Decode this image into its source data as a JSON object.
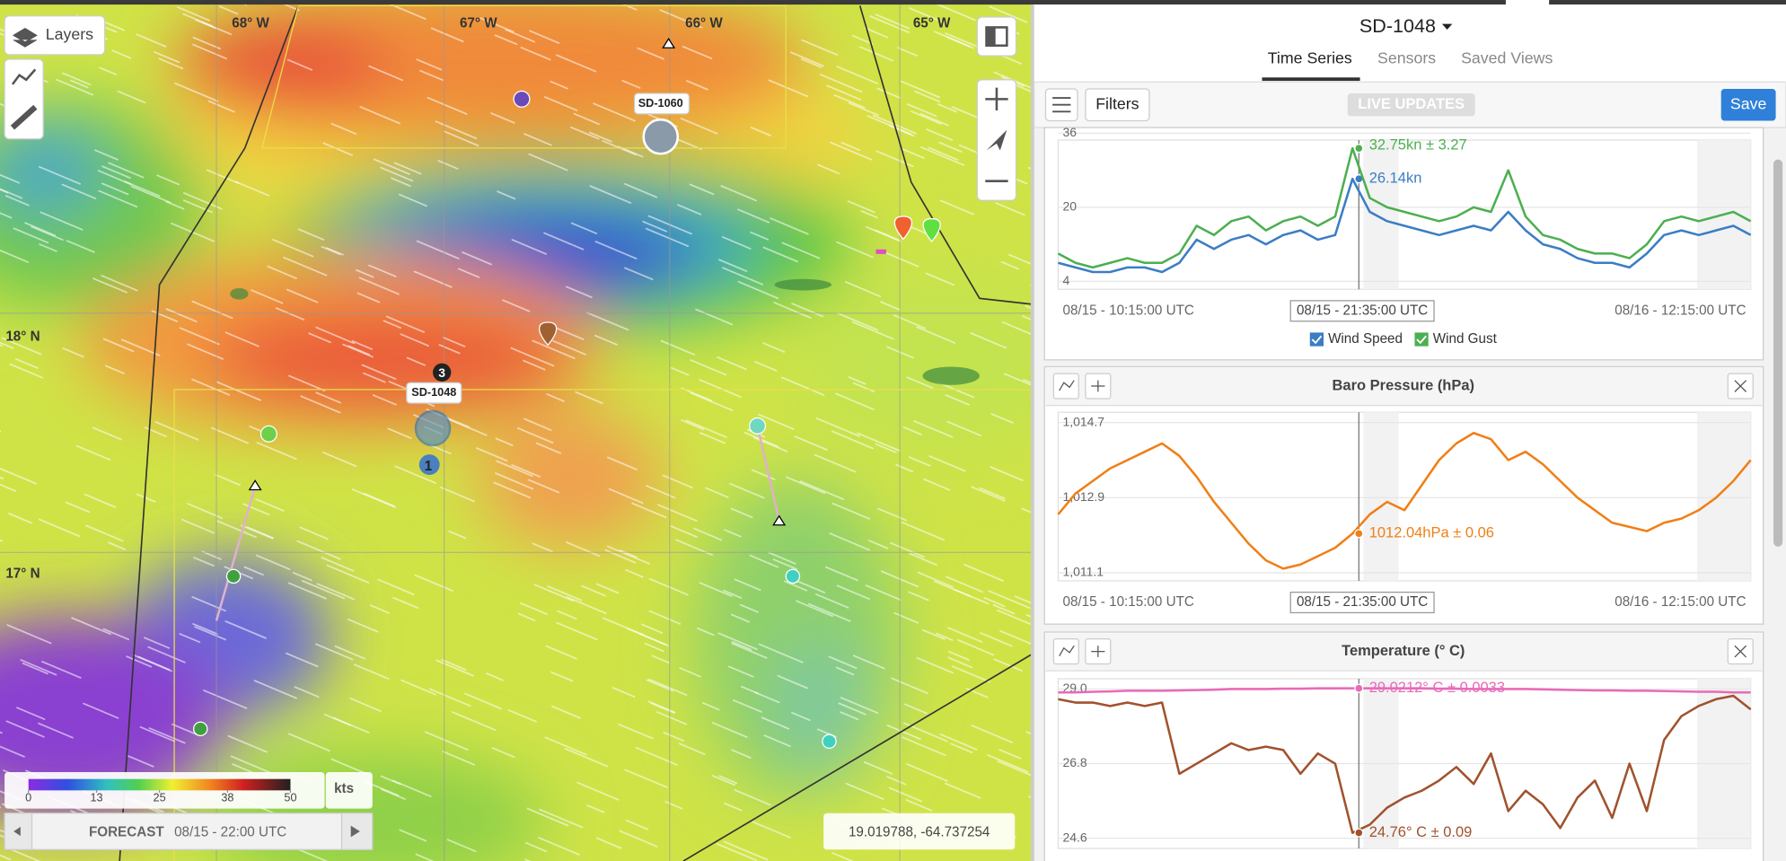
{
  "map": {
    "layers_button": "Layers",
    "longitudes": [
      "68° W",
      "67° W",
      "66° W",
      "65° W"
    ],
    "latitudes": [
      "18° N",
      "17° N"
    ],
    "stations": [
      "SD-1060",
      "SD-1048"
    ],
    "cluster_counts": [
      3,
      1
    ],
    "legend": {
      "lim": [
        0,
        50
      ],
      "ticks": [
        0,
        13,
        25,
        38,
        50
      ],
      "unit": "kts"
    },
    "forecast": {
      "label": "FORECAST",
      "time": "08/15 - 22:00 UTC"
    },
    "coordinates": "19.019788, -64.737254"
  },
  "sidebar": {
    "title": "SD-1048",
    "tabs": [
      "Time Series",
      "Sensors",
      "Saved Views"
    ],
    "filters": "Filters",
    "live": "LIVE UPDATES",
    "save": "Save"
  },
  "charts": [
    {
      "ylim": [
        4,
        36
      ],
      "yticks": [
        36,
        20,
        4
      ],
      "xlabels": [
        "08/15 - 10:15:00 UTC",
        "08/16 - 12:15:00 UTC"
      ],
      "cursor_label": "08/15 - 21:35:00 UTC",
      "series": [
        {
          "name": "Wind Speed",
          "color": "#3b7dc4",
          "readout": "26.14kn",
          "values": [
            8,
            7,
            6,
            6,
            7,
            7,
            6,
            8,
            13,
            11,
            13,
            14,
            12,
            14,
            15,
            13,
            14,
            26.14,
            19,
            17,
            16,
            15,
            14,
            15,
            16,
            15,
            19,
            15,
            12,
            11,
            9,
            8,
            8,
            7,
            10,
            14,
            15,
            14,
            15,
            16,
            14
          ]
        },
        {
          "name": "Wind Gust",
          "color": "#4caf50",
          "readout": "32.75kn ± 3.27",
          "values": [
            10,
            8,
            7,
            8,
            9,
            8,
            8,
            10,
            16,
            14,
            17,
            18,
            15,
            17,
            18,
            16,
            18,
            32.75,
            22,
            20,
            19,
            18,
            17,
            18,
            20,
            19,
            28,
            18,
            14,
            13,
            11,
            10,
            10,
            9,
            12,
            17,
            18,
            17,
            18,
            19,
            17
          ]
        }
      ]
    },
    {
      "title": "Baro Pressure (hPa)",
      "ylim": [
        1011.1,
        1014.7
      ],
      "yticks": [
        {
          "value": 1014.7,
          "label": "1,014.7"
        },
        {
          "value": 1012.9,
          "label": "1,012.9"
        },
        {
          "value": 1011.1,
          "label": "1,011.1"
        }
      ],
      "xlabels": [
        "08/15 - 10:15:00 UTC",
        "08/16 - 12:15:00 UTC"
      ],
      "cursor_label": "08/15 - 21:35:00 UTC",
      "series": [
        {
          "color": "#f07f16",
          "readout": "1012.04hPa ± 0.06",
          "values": [
            1012.5,
            1013.0,
            1013.3,
            1013.6,
            1013.8,
            1014.0,
            1014.2,
            1013.9,
            1013.4,
            1012.8,
            1012.3,
            1011.8,
            1011.4,
            1011.2,
            1011.3,
            1011.5,
            1011.7,
            1012.04,
            1012.5,
            1012.8,
            1012.6,
            1013.2,
            1013.8,
            1014.2,
            1014.45,
            1014.3,
            1013.8,
            1014.0,
            1013.7,
            1013.3,
            1012.9,
            1012.6,
            1012.3,
            1012.2,
            1012.1,
            1012.3,
            1012.4,
            1012.6,
            1012.9,
            1013.3,
            1013.8
          ]
        }
      ]
    },
    {
      "title": "Temperature (° C)",
      "ylim": [
        24.6,
        29
      ],
      "yticks": [
        {
          "value": 29,
          "label": "29.0"
        },
        26.8,
        24.6
      ],
      "series": [
        {
          "color": "#e86ab8",
          "readout": "29.0212° C ± 0.0033",
          "values": [
            28.9,
            28.9,
            28.92,
            28.93,
            28.95,
            28.95,
            28.95,
            28.96,
            28.97,
            28.98,
            29.0,
            29.0,
            29.0,
            29.01,
            29.01,
            29.02,
            29.02,
            29.0212,
            29.02,
            29.02,
            29.02,
            29.02,
            29.01,
            29.01,
            29.0,
            29.0,
            29.0,
            29.0,
            28.99,
            28.98,
            28.97,
            28.96,
            28.96,
            28.95,
            28.95,
            28.94,
            28.93,
            28.92,
            28.92,
            28.9,
            28.9
          ]
        },
        {
          "color": "#a0522d",
          "readout": "24.76° C ± 0.09",
          "values": [
            28.7,
            28.6,
            28.6,
            28.5,
            28.6,
            28.5,
            28.6,
            26.5,
            26.8,
            27.1,
            27.4,
            27.2,
            27.3,
            27.2,
            26.5,
            27.1,
            26.8,
            24.76,
            25.0,
            25.5,
            25.8,
            26.0,
            26.3,
            26.7,
            26.2,
            27.1,
            25.4,
            26.0,
            25.6,
            24.9,
            25.8,
            26.3,
            25.2,
            26.8,
            25.4,
            27.5,
            28.2,
            28.5,
            28.7,
            28.8,
            28.4
          ]
        }
      ]
    }
  ]
}
